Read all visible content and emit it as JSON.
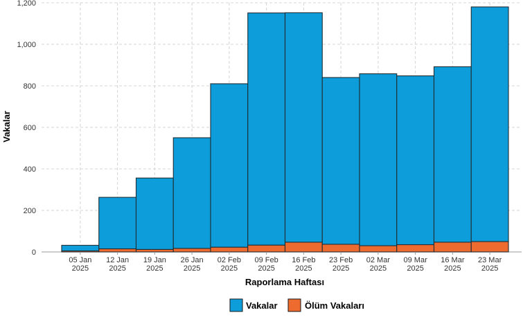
{
  "chart_data": {
    "type": "bar",
    "stacked": true,
    "categories": [
      [
        "05 Jan",
        "2025"
      ],
      [
        "12 Jan",
        "2025"
      ],
      [
        "19 Jan",
        "2025"
      ],
      [
        "26 Jan",
        "2025"
      ],
      [
        "02 Feb",
        "2025"
      ],
      [
        "09 Feb",
        "2025"
      ],
      [
        "16 Feb",
        "2025"
      ],
      [
        "23 Feb",
        "2025"
      ],
      [
        "02 Mar",
        "2025"
      ],
      [
        "09 Mar",
        "2025"
      ],
      [
        "16 Mar",
        "2025"
      ],
      [
        "23 Mar",
        "2025"
      ]
    ],
    "series": [
      {
        "name": "Ölüm Vakaları",
        "color": "#ee6b30",
        "values": [
          5,
          15,
          12,
          17,
          23,
          33,
          47,
          37,
          30,
          35,
          47,
          50
        ]
      },
      {
        "name": "Vakalar",
        "color": "#0d9ddb",
        "values": [
          27,
          248,
          344,
          533,
          787,
          1118,
          1105,
          803,
          828,
          813,
          845,
          1130
        ]
      }
    ],
    "xlabel": "Raporlama Haftası",
    "ylabel": "Vakalar",
    "ylim": [
      0,
      1200
    ],
    "yticks": [
      "0",
      "200",
      "400",
      "600",
      "800",
      "1,000",
      "1,200"
    ],
    "ytick_values": [
      0,
      200,
      400,
      600,
      800,
      1000,
      1200
    ],
    "grid": true,
    "legend_position": "bottom",
    "legend": [
      {
        "label": "Vakalar",
        "color": "#0d9ddb"
      },
      {
        "label": "Ölüm Vakaları",
        "color": "#ee6b30"
      }
    ]
  }
}
